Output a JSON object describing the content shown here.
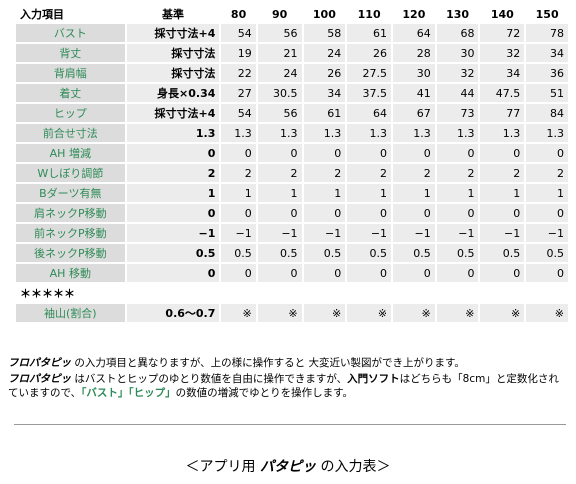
{
  "table": {
    "header": [
      "入力項目",
      "基準",
      "80",
      "90",
      "100",
      "110",
      "120",
      "130",
      "140",
      "150"
    ],
    "rows": [
      [
        "バスト",
        "採寸寸法+4",
        "54",
        "56",
        "58",
        "61",
        "64",
        "68",
        "72",
        "78"
      ],
      [
        "背丈",
        "採寸寸法",
        "19",
        "21",
        "24",
        "26",
        "28",
        "30",
        "32",
        "34"
      ],
      [
        "背肩幅",
        "採寸寸法",
        "22",
        "24",
        "26",
        "27.5",
        "30",
        "32",
        "34",
        "36"
      ],
      [
        "着丈",
        "身長×0.34",
        "27",
        "30.5",
        "34",
        "37.5",
        "41",
        "44",
        "47.5",
        "51"
      ],
      [
        "ヒップ",
        "採寸寸法+4",
        "54",
        "56",
        "61",
        "64",
        "67",
        "73",
        "77",
        "84"
      ],
      [
        "前合せ寸法",
        "1.3",
        "1.3",
        "1.3",
        "1.3",
        "1.3",
        "1.3",
        "1.3",
        "1.3",
        "1.3"
      ],
      [
        "AH 増減",
        "0",
        "0",
        "0",
        "0",
        "0",
        "0",
        "0",
        "0",
        "0"
      ],
      [
        "Wしぼり調節",
        "2",
        "2",
        "2",
        "2",
        "2",
        "2",
        "2",
        "2",
        "2"
      ],
      [
        "Bダーツ有無",
        "1",
        "1",
        "1",
        "1",
        "1",
        "1",
        "1",
        "1",
        "1"
      ],
      [
        "肩ネックP移動",
        "0",
        "0",
        "0",
        "0",
        "0",
        "0",
        "0",
        "0",
        "0"
      ],
      [
        "前ネックP移動",
        "−1",
        "−1",
        "−1",
        "−1",
        "−1",
        "−1",
        "−1",
        "−1",
        "−1"
      ],
      [
        "後ネックP移動",
        "0.5",
        "0.5",
        "0.5",
        "0.5",
        "0.5",
        "0.5",
        "0.5",
        "0.5",
        "0.5"
      ],
      [
        "AH 移動",
        "0",
        "0",
        "0",
        "0",
        "0",
        "0",
        "0",
        "0",
        "0"
      ],
      [
        "＊＊＊＊＊"
      ],
      [
        "袖山(割合)",
        "0.6〜0.7",
        "※",
        "※",
        "※",
        "※",
        "※",
        "※",
        "※",
        "※"
      ]
    ]
  },
  "notes": [
    [
      "フロパタピッ",
      " の入力項目と異なりますが、上の様に操作すると 大変近い製図ができ上がります。"
    ],
    [
      "フロパタピッ",
      " はバストとヒップのゆとり数値を自由に操作できますが、",
      "入門ソフト",
      "はどちらも「8cm」と定数化されていますので、",
      "「バスト」「ヒップ」",
      "の数値の増減でゆとりを操作します。"
    ]
  ],
  "footer": [
    "＜アプリ用 ",
    "パタピッ",
    " の入力表＞"
  ]
}
